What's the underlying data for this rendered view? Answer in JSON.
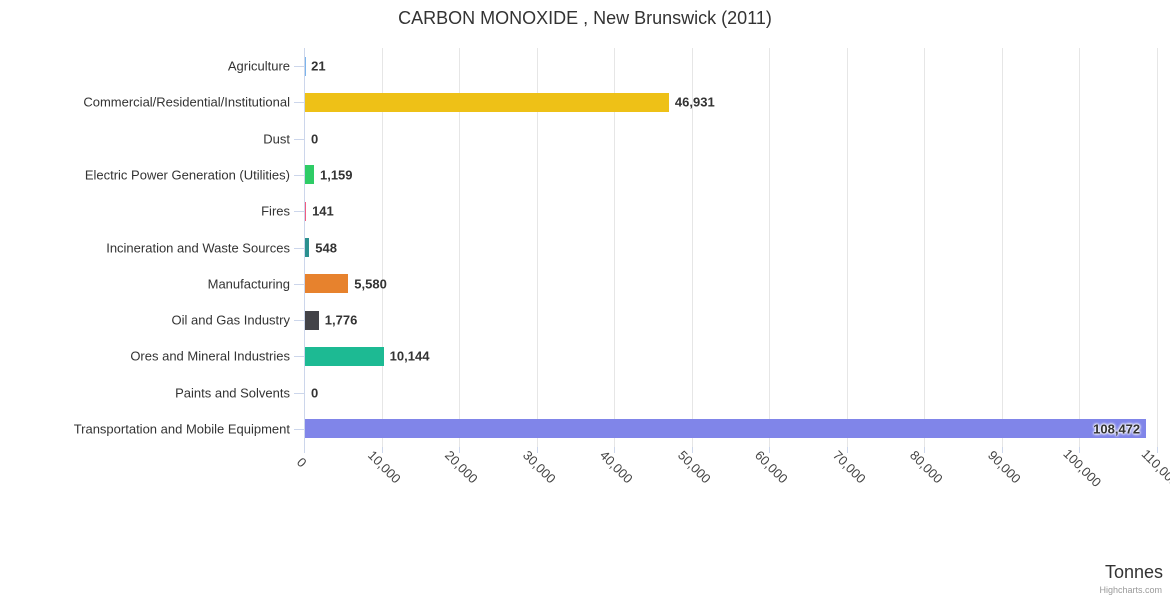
{
  "chart_data": {
    "type": "bar",
    "orientation": "horizontal",
    "title": "CARBON MONOXIDE , New Brunswick (2011)",
    "xlabel": "Tonnes",
    "credit": "Highcharts.com",
    "grid": true,
    "legend": "none",
    "xlim": [
      0,
      110000
    ],
    "tick_interval": 10000,
    "tick_labels": [
      "0",
      "10,000",
      "20,000",
      "30,000",
      "40,000",
      "50,000",
      "60,000",
      "70,000",
      "80,000",
      "90,000",
      "100,000",
      "110,000"
    ],
    "categories": [
      "Agriculture",
      "Commercial/Residential/Institutional",
      "Dust",
      "Electric Power Generation (Utilities)",
      "Fires",
      "Incineration and Waste Sources",
      "Manufacturing",
      "Oil and Gas Industry",
      "Ores and Mineral Industries",
      "Paints and Solvents",
      "Transportation and Mobile Equipment"
    ],
    "values": [
      21,
      46931,
      0,
      1159,
      141,
      548,
      5580,
      1776,
      10144,
      0,
      108472
    ],
    "value_labels": [
      "21",
      "46,931",
      "0",
      "1,159",
      "141",
      "548",
      "5,580",
      "1,776",
      "10,144",
      "0",
      "108,472"
    ],
    "bar_colors": [
      "#7cb5ec",
      "#eec117",
      "#90ed7d",
      "#2ecc66",
      "#f15c80",
      "#2b908f",
      "#e7822d",
      "#434348",
      "#1dba93",
      "#e4d354",
      "#8085e9"
    ]
  },
  "style": {
    "grid_color": "#e6e6e6",
    "axis_color": "#ccd6eb",
    "tick_color": "#ccd6eb"
  }
}
